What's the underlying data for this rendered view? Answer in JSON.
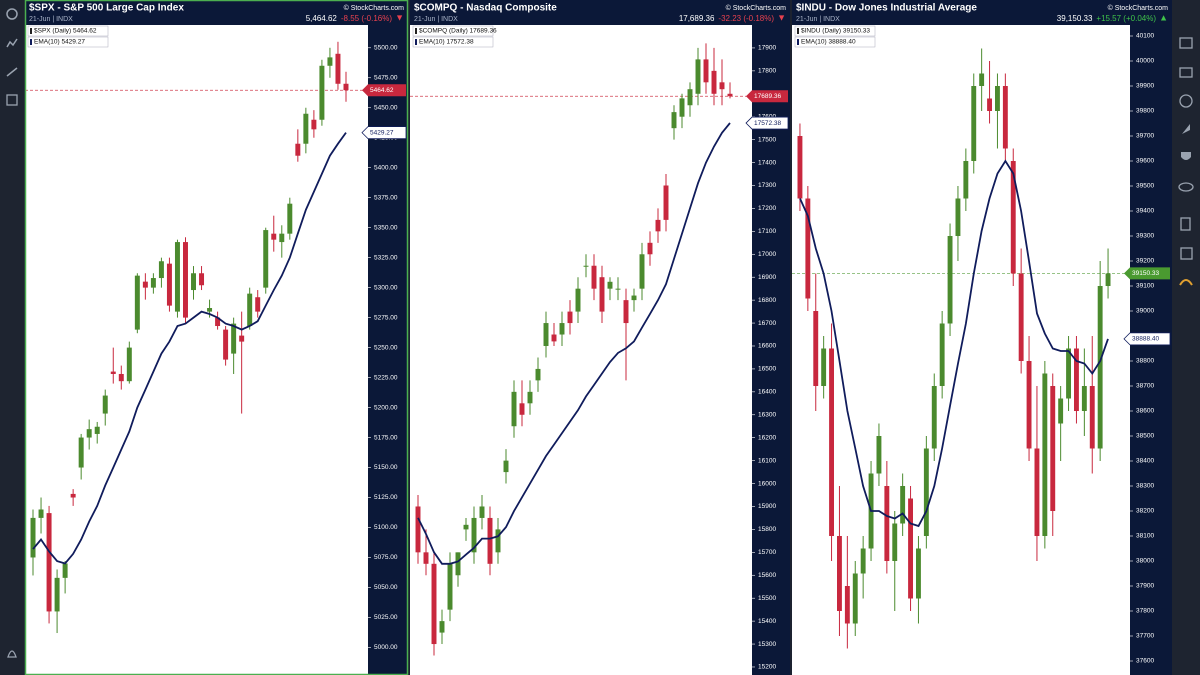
{
  "chart_data": [
    {
      "type": "candlestick",
      "title": "$SPX - S&P 500 Large Cap Index",
      "source": "© StockCharts.com",
      "date": "21-Jun | INDX",
      "price_label": "5,464.62",
      "change_label": "-8.55 (-0.16%)",
      "change_arrow": "▼",
      "change_color": "#e8414f",
      "legend": [
        "$SPX (Daily) 5464.62",
        "EMA(10) 5429.27"
      ],
      "up_color": "#4b8a2e",
      "down_color": "#c8283e",
      "ema_color": "#101c5c",
      "last_line_color": "#d04050",
      "price_marker": {
        "value": 5464.62,
        "label": "5464.62"
      },
      "ema_marker": {
        "value": 5429.27,
        "label": "5429.27"
      },
      "ylim": [
        4977,
        5519
      ],
      "grid": false,
      "yticks": [
        {
          "value": 5000,
          "label": "5000.00"
        },
        {
          "value": 5025,
          "label": "5025.00"
        },
        {
          "value": 5050,
          "label": "5050.00"
        },
        {
          "value": 5075,
          "label": "5075.00"
        },
        {
          "value": 5100,
          "label": "5100.00"
        },
        {
          "value": 5125,
          "label": "5125.00"
        },
        {
          "value": 5150,
          "label": "5150.00"
        },
        {
          "value": 5175,
          "label": "5175.00"
        },
        {
          "value": 5200,
          "label": "5200.00"
        },
        {
          "value": 5225,
          "label": "5225.00"
        },
        {
          "value": 5250,
          "label": "5250.00"
        },
        {
          "value": 5275,
          "label": "5275.00"
        },
        {
          "value": 5300,
          "label": "5300.00"
        },
        {
          "value": 5325,
          "label": "5325.00"
        },
        {
          "value": 5350,
          "label": "5350.00"
        },
        {
          "value": 5375,
          "label": "5375.00"
        },
        {
          "value": 5400,
          "label": "5400.00"
        },
        {
          "value": 5425,
          "label": "5425.00"
        },
        {
          "value": 5450,
          "label": "5450.00"
        },
        {
          "value": 5475,
          "label": "5475.00"
        },
        {
          "value": 5500,
          "label": "5500.00"
        }
      ],
      "candles": [
        [
          5075,
          5115,
          5060,
          5108
        ],
        [
          5108,
          5125,
          5095,
          5115
        ],
        [
          5112,
          5118,
          5020,
          5030
        ],
        [
          5030,
          5065,
          5012,
          5058
        ],
        [
          5058,
          5072,
          5045,
          5070
        ],
        [
          5128,
          5132,
          5118,
          5125
        ],
        [
          5150,
          5178,
          5140,
          5175
        ],
        [
          5175,
          5190,
          5165,
          5182
        ],
        [
          5178,
          5188,
          5170,
          5184
        ],
        [
          5195,
          5215,
          5185,
          5210
        ],
        [
          5230,
          5250,
          5220,
          5228
        ],
        [
          5228,
          5235,
          5215,
          5222
        ],
        [
          5222,
          5255,
          5220,
          5250
        ],
        [
          5265,
          5312,
          5262,
          5310
        ],
        [
          5305,
          5312,
          5290,
          5300
        ],
        [
          5300,
          5312,
          5295,
          5308
        ],
        [
          5308,
          5325,
          5300,
          5322
        ],
        [
          5320,
          5325,
          5280,
          5285
        ],
        [
          5280,
          5340,
          5275,
          5338
        ],
        [
          5338,
          5342,
          5270,
          5275
        ],
        [
          5298,
          5318,
          5290,
          5312
        ],
        [
          5312,
          5318,
          5298,
          5302
        ],
        [
          5280,
          5290,
          5275,
          5283
        ],
        [
          5275,
          5280,
          5265,
          5268
        ],
        [
          5265,
          5268,
          5235,
          5240
        ],
        [
          5245,
          5275,
          5228,
          5270
        ],
        [
          5260,
          5280,
          5195,
          5255
        ],
        [
          5268,
          5300,
          5265,
          5295
        ],
        [
          5292,
          5298,
          5275,
          5280
        ],
        [
          5300,
          5350,
          5295,
          5348
        ],
        [
          5345,
          5360,
          5330,
          5340
        ],
        [
          5338,
          5352,
          5325,
          5345
        ],
        [
          5345,
          5375,
          5340,
          5370
        ],
        [
          5420,
          5432,
          5405,
          5410
        ],
        [
          5420,
          5450,
          5412,
          5445
        ],
        [
          5440,
          5448,
          5425,
          5432
        ],
        [
          5440,
          5490,
          5435,
          5485
        ],
        [
          5485,
          5500,
          5475,
          5492
        ],
        [
          5495,
          5505,
          5465,
          5470
        ],
        [
          5470,
          5480,
          5455,
          5464.62
        ]
      ],
      "ema": [
        5082,
        5090,
        5080,
        5072,
        5070,
        5078,
        5090,
        5105,
        5118,
        5135,
        5150,
        5165,
        5180,
        5200,
        5215,
        5230,
        5245,
        5255,
        5268,
        5270,
        5275,
        5280,
        5278,
        5275,
        5270,
        5268,
        5265,
        5268,
        5272,
        5285,
        5298,
        5310,
        5325,
        5345,
        5365,
        5380,
        5395,
        5410,
        5420,
        5429.27
      ]
    },
    {
      "type": "candlestick",
      "title": "$COMPQ - Nasdaq Composite",
      "source": "© StockCharts.com",
      "date": "21-Jun | INDX",
      "price_label": "17,689.36",
      "change_label": "-32.23 (-0.18%)",
      "change_arrow": "▼",
      "change_color": "#e8414f",
      "legend": [
        "$COMPQ (Daily) 17689.36",
        "EMA(10) 17572.38"
      ],
      "up_color": "#4b8a2e",
      "down_color": "#c8283e",
      "ema_color": "#101c5c",
      "last_line_color": "#d04050",
      "price_marker": {
        "value": 17689.36,
        "label": "17689.36"
      },
      "ema_marker": {
        "value": 17572.38,
        "label": "17572.38"
      },
      "ylim": [
        15165,
        18000
      ],
      "grid": false,
      "yticks": [
        15200,
        15300,
        15400,
        15500,
        15600,
        15700,
        15800,
        15900,
        16000,
        16100,
        16200,
        16300,
        16400,
        16500,
        16600,
        16700,
        16800,
        16900,
        17000,
        17100,
        17200,
        17300,
        17400,
        17500,
        17600,
        17700,
        17800,
        17900
      ],
      "candles": [
        [
          15900,
          15950,
          15650,
          15700
        ],
        [
          15700,
          15800,
          15600,
          15650
        ],
        [
          15650,
          15700,
          15250,
          15300
        ],
        [
          15350,
          15450,
          15300,
          15400
        ],
        [
          15450,
          15700,
          15400,
          15650
        ],
        [
          15600,
          15700,
          15550,
          15700
        ],
        [
          15800,
          15850,
          15750,
          15820
        ],
        [
          15700,
          15900,
          15650,
          15850
        ],
        [
          15850,
          15950,
          15800,
          15900
        ],
        [
          15850,
          15900,
          15600,
          15650
        ],
        [
          15700,
          15850,
          15650,
          15800
        ],
        [
          16050,
          16150,
          16000,
          16100
        ],
        [
          16250,
          16450,
          16200,
          16400
        ],
        [
          16350,
          16450,
          16250,
          16300
        ],
        [
          16350,
          16450,
          16300,
          16400
        ],
        [
          16450,
          16550,
          16400,
          16500
        ],
        [
          16600,
          16750,
          16550,
          16700
        ],
        [
          16650,
          16700,
          16600,
          16620
        ],
        [
          16650,
          16750,
          16600,
          16700
        ],
        [
          16750,
          16800,
          16650,
          16700
        ],
        [
          16750,
          16900,
          16700,
          16850
        ],
        [
          16950,
          17000,
          16900,
          16950
        ],
        [
          16950,
          17000,
          16800,
          16850
        ],
        [
          16900,
          16950,
          16700,
          16750
        ],
        [
          16850,
          16900,
          16800,
          16880
        ],
        [
          16850,
          16900,
          16800,
          16850
        ],
        [
          16800,
          16850,
          16450,
          16700
        ],
        [
          16800,
          16850,
          16750,
          16820
        ],
        [
          16850,
          17050,
          16800,
          17000
        ],
        [
          17050,
          17100,
          16950,
          17000
        ],
        [
          17150,
          17200,
          17050,
          17100
        ],
        [
          17300,
          17350,
          17100,
          17150
        ],
        [
          17550,
          17650,
          17500,
          17620
        ],
        [
          17600,
          17700,
          17550,
          17680
        ],
        [
          17650,
          17750,
          17600,
          17720
        ],
        [
          17700,
          17900,
          17650,
          17850
        ],
        [
          17850,
          17920,
          17700,
          17750
        ],
        [
          17800,
          17900,
          17650,
          17700
        ],
        [
          17750,
          17850,
          17650,
          17720
        ],
        [
          17700,
          17750,
          17680,
          17689.36
        ]
      ],
      "ema": [
        15850,
        15780,
        15700,
        15650,
        15650,
        15660,
        15690,
        15720,
        15760,
        15760,
        15770,
        15810,
        15880,
        15940,
        16000,
        16060,
        16120,
        16170,
        16220,
        16270,
        16320,
        16380,
        16430,
        16480,
        16530,
        16570,
        16590,
        16620,
        16680,
        16740,
        16800,
        16870,
        16980,
        17090,
        17200,
        17310,
        17400,
        17470,
        17530,
        17572.38
      ]
    },
    {
      "type": "candlestick",
      "title": "$INDU - Dow Jones Industrial Average",
      "source": "© StockCharts.com",
      "date": "21-Jun | INDX",
      "price_label": "39,150.33",
      "change_label": "+15.57 (+0.04%)",
      "change_arrow": "▲",
      "change_color": "#3fc24a",
      "legend": [
        "$INDU (Daily) 39150.33",
        "EMA(10) 38888.40"
      ],
      "up_color": "#4b8a2e",
      "down_color": "#c8283e",
      "ema_color": "#101c5c",
      "last_line_color": "#5aa040",
      "price_marker": {
        "value": 39150.33,
        "label": "39150.33"
      },
      "ema_marker": {
        "value": 38888.4,
        "label": "38888.40"
      },
      "ylim": [
        37544,
        40144
      ],
      "grid": false,
      "yticks": [
        37600,
        37700,
        37800,
        37900,
        38000,
        38100,
        38200,
        38300,
        38400,
        38500,
        38600,
        38700,
        38800,
        38900,
        39000,
        39100,
        39200,
        39300,
        39400,
        39500,
        39600,
        39700,
        39800,
        39900,
        40000,
        40100
      ],
      "candles": [
        [
          39700,
          39750,
          39400,
          39450
        ],
        [
          39450,
          39500,
          39000,
          39050
        ],
        [
          39000,
          39150,
          38600,
          38700
        ],
        [
          38700,
          38900,
          38650,
          38850
        ],
        [
          38850,
          38950,
          38000,
          38100
        ],
        [
          38100,
          38300,
          37700,
          37800
        ],
        [
          37900,
          38100,
          37650,
          37750
        ],
        [
          37750,
          38000,
          37700,
          37950
        ],
        [
          37950,
          38100,
          37850,
          38050
        ],
        [
          38050,
          38400,
          38000,
          38350
        ],
        [
          38350,
          38550,
          38300,
          38500
        ],
        [
          38300,
          38400,
          37950,
          38000
        ],
        [
          38000,
          38200,
          37800,
          38150
        ],
        [
          38150,
          38350,
          38100,
          38300
        ],
        [
          38250,
          38300,
          37800,
          37850
        ],
        [
          37850,
          38100,
          37750,
          38050
        ],
        [
          38100,
          38500,
          38050,
          38450
        ],
        [
          38450,
          38750,
          38400,
          38700
        ],
        [
          38700,
          39000,
          38650,
          38950
        ],
        [
          38950,
          39350,
          38900,
          39300
        ],
        [
          39300,
          39500,
          39200,
          39450
        ],
        [
          39450,
          39650,
          39400,
          39600
        ],
        [
          39600,
          39950,
          39550,
          39900
        ],
        [
          39900,
          40050,
          39800,
          39950
        ],
        [
          39850,
          40000,
          39750,
          39800
        ],
        [
          39800,
          39950,
          39650,
          39900
        ],
        [
          39900,
          39950,
          39600,
          39650
        ],
        [
          39600,
          39650,
          39100,
          39150
        ],
        [
          39150,
          39250,
          38750,
          38800
        ],
        [
          38800,
          38900,
          38400,
          38450
        ],
        [
          38450,
          38700,
          38000,
          38100
        ],
        [
          38100,
          38800,
          38050,
          38750
        ],
        [
          38700,
          38750,
          38100,
          38200
        ],
        [
          38550,
          38700,
          38400,
          38650
        ],
        [
          38650,
          38900,
          38600,
          38850
        ],
        [
          38850,
          38900,
          38550,
          38600
        ],
        [
          38600,
          38850,
          38500,
          38700
        ],
        [
          38700,
          38900,
          38350,
          38450
        ],
        [
          38450,
          39200,
          38400,
          39100
        ],
        [
          39100,
          39250,
          39050,
          39150.33
        ]
      ],
      "ema": [
        39450,
        39380,
        39250,
        39150,
        39000,
        38800,
        38600,
        38450,
        38300,
        38200,
        38200,
        38180,
        38170,
        38190,
        38150,
        38140,
        38200,
        38300,
        38450,
        38620,
        38790,
        38950,
        39150,
        39320,
        39450,
        39550,
        39600,
        39550,
        39400,
        39200,
        38990,
        38910,
        38850,
        38840,
        38840,
        38800,
        38790,
        38750,
        38800,
        38888.4
      ]
    }
  ]
}
